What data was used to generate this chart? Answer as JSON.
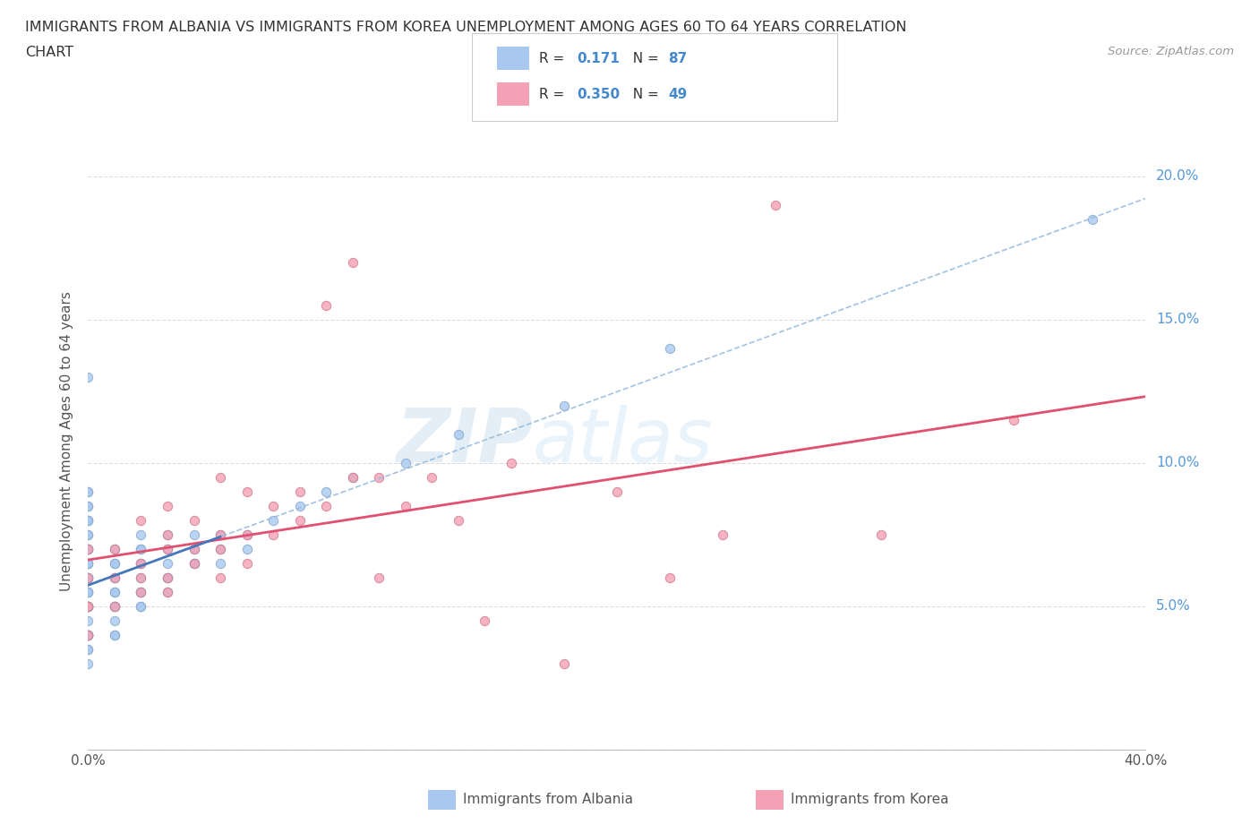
{
  "title_line1": "IMMIGRANTS FROM ALBANIA VS IMMIGRANTS FROM KOREA UNEMPLOYMENT AMONG AGES 60 TO 64 YEARS CORRELATION",
  "title_line2": "CHART",
  "source_text": "Source: ZipAtlas.com",
  "ylabel": "Unemployment Among Ages 60 to 64 years",
  "xlim": [
    0.0,
    0.4
  ],
  "ylim": [
    0.0,
    0.215
  ],
  "xticks": [
    0.0,
    0.05,
    0.1,
    0.15,
    0.2,
    0.25,
    0.3,
    0.35,
    0.4
  ],
  "yticks": [
    0.0,
    0.05,
    0.1,
    0.15,
    0.2
  ],
  "albania_color": "#a8c8f0",
  "korea_color": "#f4a0b5",
  "albania_line_color": "#4477bb",
  "albania_dash_color": "#99bbdd",
  "korea_line_color": "#e05070",
  "watermark_color": "#d8eaf8",
  "r_albania": 0.171,
  "n_albania": 87,
  "r_korea": 0.35,
  "n_korea": 49,
  "legend_label_albania": "Immigrants from Albania",
  "legend_label_korea": "Immigrants from Korea",
  "albania_x": [
    0.0,
    0.0,
    0.0,
    0.0,
    0.0,
    0.0,
    0.0,
    0.0,
    0.0,
    0.0,
    0.0,
    0.0,
    0.0,
    0.0,
    0.0,
    0.0,
    0.0,
    0.0,
    0.0,
    0.0,
    0.0,
    0.0,
    0.0,
    0.0,
    0.0,
    0.0,
    0.0,
    0.0,
    0.0,
    0.0,
    0.0,
    0.0,
    0.0,
    0.0,
    0.0,
    0.0,
    0.0,
    0.0,
    0.0,
    0.0,
    0.01,
    0.01,
    0.01,
    0.01,
    0.01,
    0.01,
    0.01,
    0.01,
    0.01,
    0.01,
    0.01,
    0.01,
    0.01,
    0.02,
    0.02,
    0.02,
    0.02,
    0.02,
    0.02,
    0.02,
    0.02,
    0.02,
    0.02,
    0.03,
    0.03,
    0.03,
    0.03,
    0.03,
    0.03,
    0.04,
    0.04,
    0.04,
    0.04,
    0.05,
    0.05,
    0.05,
    0.06,
    0.06,
    0.07,
    0.08,
    0.09,
    0.1,
    0.12,
    0.14,
    0.18,
    0.22,
    0.38
  ],
  "albania_y": [
    0.03,
    0.035,
    0.035,
    0.04,
    0.04,
    0.04,
    0.04,
    0.04,
    0.04,
    0.045,
    0.05,
    0.05,
    0.05,
    0.05,
    0.05,
    0.05,
    0.055,
    0.055,
    0.055,
    0.06,
    0.06,
    0.06,
    0.06,
    0.065,
    0.065,
    0.065,
    0.07,
    0.07,
    0.07,
    0.07,
    0.075,
    0.075,
    0.08,
    0.08,
    0.08,
    0.085,
    0.085,
    0.09,
    0.09,
    0.13,
    0.04,
    0.04,
    0.045,
    0.05,
    0.05,
    0.05,
    0.055,
    0.055,
    0.06,
    0.06,
    0.065,
    0.065,
    0.07,
    0.05,
    0.05,
    0.055,
    0.055,
    0.06,
    0.065,
    0.065,
    0.07,
    0.07,
    0.075,
    0.055,
    0.06,
    0.06,
    0.065,
    0.07,
    0.075,
    0.065,
    0.065,
    0.07,
    0.075,
    0.065,
    0.07,
    0.075,
    0.07,
    0.075,
    0.08,
    0.085,
    0.09,
    0.095,
    0.1,
    0.11,
    0.12,
    0.14,
    0.185
  ],
  "korea_x": [
    0.0,
    0.0,
    0.0,
    0.0,
    0.0,
    0.01,
    0.01,
    0.01,
    0.02,
    0.02,
    0.02,
    0.02,
    0.03,
    0.03,
    0.03,
    0.03,
    0.03,
    0.04,
    0.04,
    0.04,
    0.05,
    0.05,
    0.05,
    0.05,
    0.06,
    0.06,
    0.06,
    0.07,
    0.07,
    0.08,
    0.08,
    0.09,
    0.09,
    0.1,
    0.1,
    0.11,
    0.11,
    0.12,
    0.13,
    0.14,
    0.15,
    0.16,
    0.18,
    0.2,
    0.22,
    0.24,
    0.26,
    0.3,
    0.35
  ],
  "korea_y": [
    0.04,
    0.05,
    0.05,
    0.06,
    0.07,
    0.05,
    0.06,
    0.07,
    0.055,
    0.06,
    0.065,
    0.08,
    0.055,
    0.06,
    0.07,
    0.075,
    0.085,
    0.065,
    0.07,
    0.08,
    0.06,
    0.07,
    0.075,
    0.095,
    0.065,
    0.075,
    0.09,
    0.075,
    0.085,
    0.08,
    0.09,
    0.085,
    0.155,
    0.095,
    0.17,
    0.06,
    0.095,
    0.085,
    0.095,
    0.08,
    0.045,
    0.1,
    0.03,
    0.09,
    0.06,
    0.075,
    0.19,
    0.075,
    0.115
  ]
}
